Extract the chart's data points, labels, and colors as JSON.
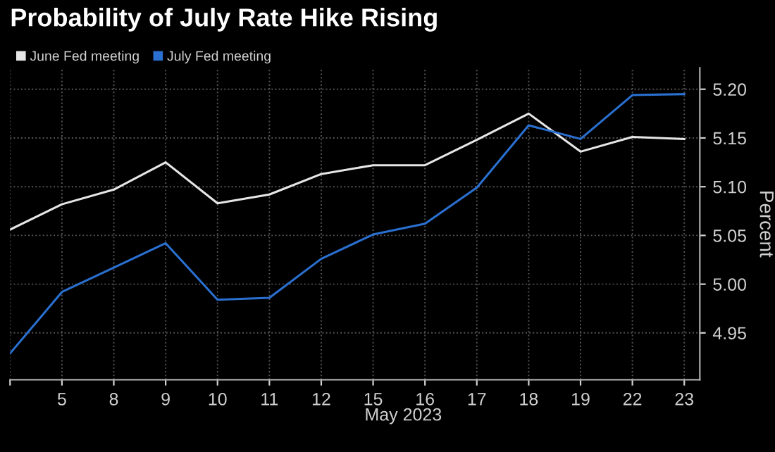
{
  "chart_data": {
    "type": "line",
    "title": "Probability of July Rate Hike Rising",
    "xlabel": "May 2023",
    "ylabel": "Percent",
    "categories": [
      null,
      "5",
      "8",
      "9",
      "10",
      "11",
      "12",
      "15",
      "16",
      "17",
      "18",
      "19",
      "22",
      "23"
    ],
    "series": [
      {
        "name": "June Fed meeting",
        "color": "#e6e6e6",
        "values": [
          5.056,
          5.082,
          5.097,
          5.125,
          5.083,
          5.092,
          5.113,
          5.122,
          5.122,
          5.148,
          5.175,
          5.136,
          5.151,
          5.149
        ]
      },
      {
        "name": "July Fed meeting",
        "color": "#2a70d0",
        "values": [
          4.929,
          4.992,
          5.017,
          5.042,
          4.984,
          4.986,
          5.026,
          5.051,
          5.062,
          5.099,
          5.163,
          5.149,
          5.194,
          5.195
        ]
      }
    ],
    "ylim": [
      4.902,
      5.222
    ],
    "yticks": [
      {
        "value": 4.95,
        "label": "4.95"
      },
      {
        "value": 5.0,
        "label": "5.00"
      },
      {
        "value": 5.05,
        "label": "5.05"
      },
      {
        "value": 5.1,
        "label": "5.10"
      },
      {
        "value": 5.15,
        "label": "5.15"
      },
      {
        "value": 5.2,
        "label": "5.20"
      }
    ],
    "grid": true,
    "legend": "top left",
    "line_style": "solid",
    "marker": "none"
  }
}
